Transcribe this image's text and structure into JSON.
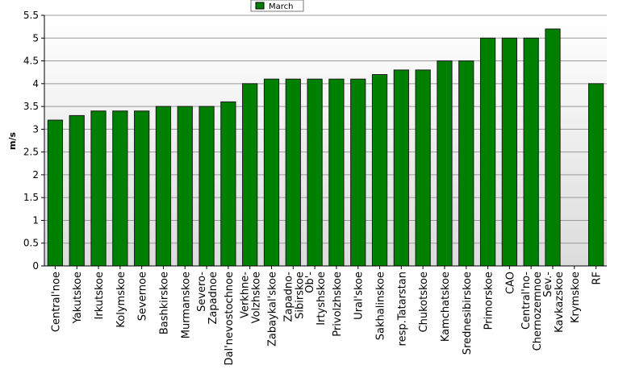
{
  "chart_data": {
    "type": "bar",
    "ylabel": "m/s",
    "ylim": [
      0,
      5.5
    ],
    "yticks": [
      0,
      0.5,
      1,
      1.5,
      2,
      2.5,
      3,
      3.5,
      4,
      4.5,
      5,
      5.5
    ],
    "grid": true,
    "legend_position": "top-center",
    "series": [
      {
        "name": "March",
        "color": "#008000",
        "values": [
          3.2,
          3.3,
          3.4,
          3.4,
          3.4,
          3.5,
          3.5,
          3.5,
          3.6,
          4.0,
          4.1,
          4.1,
          4.1,
          4.1,
          4.1,
          4.2,
          4.3,
          4.3,
          4.5,
          4.5,
          5.0,
          5.0,
          5.0,
          5.2,
          0,
          4.0
        ]
      }
    ],
    "categories": [
      "Central'noe",
      "Yakutskoe",
      "Irkutskoe",
      "Kolymskoe",
      "Severnoe",
      "Bashkirskoe",
      "Murmanskoe",
      "Severo-Zapadnoe",
      "Dal'nevostochnoe",
      "Verkhne-Volzhskoe",
      "Zabaykal'skoe",
      "Zapadno-Sibirskoe",
      "Ob'-Irtyshskoe",
      "Privolzhskoe",
      "Ural'skoe",
      "Sakhalinskoe",
      "resp.Tatarstan",
      "Chukotskoe",
      "Kamchatskoe",
      "Srednesibirskoe",
      "Primorskoe",
      "CAO",
      "Central'no-Chernozemnoe",
      "Sev.-Kavkazskoe",
      "Krymskoe",
      "RF"
    ],
    "category_label_lines": [
      [
        "Central'noe"
      ],
      [
        "Yakutskoe"
      ],
      [
        "Irkutskoe"
      ],
      [
        "Kolymskoe"
      ],
      [
        "Severnoe"
      ],
      [
        "Bashkirskoe"
      ],
      [
        "Murmanskoe"
      ],
      [
        "Severo-",
        "Zapadnoe"
      ],
      [
        "Dal'nevostochnoe"
      ],
      [
        "Verkhne-",
        "Volzhskoe"
      ],
      [
        "Zabaykal'skoe"
      ],
      [
        "Zapadno-",
        "Sibirskoe"
      ],
      [
        "Ob'-",
        "Irtyshskoe"
      ],
      [
        "Privolzhskoe"
      ],
      [
        "Ural'skoe"
      ],
      [
        "Sakhalinskoe"
      ],
      [
        "resp.Tatarstan"
      ],
      [
        "Chukotskoe"
      ],
      [
        "Kamchatskoe"
      ],
      [
        "Srednesibirskoe"
      ],
      [
        "Primorskoe"
      ],
      [
        "CAO"
      ],
      [
        "Central'no-",
        "Chernozemnoe"
      ],
      [
        "Sev.-",
        "Kavkazskoe"
      ],
      [
        "Krymskoe"
      ],
      [
        "RF"
      ]
    ]
  },
  "colors": {
    "bar_fill": "#008000",
    "bar_stroke": "#1a1a1a",
    "plot_bg_top": "#ffffff",
    "plot_bg_bottom": "#dcdcdc",
    "grid": "#9a9a9a",
    "axis": "#000000"
  }
}
